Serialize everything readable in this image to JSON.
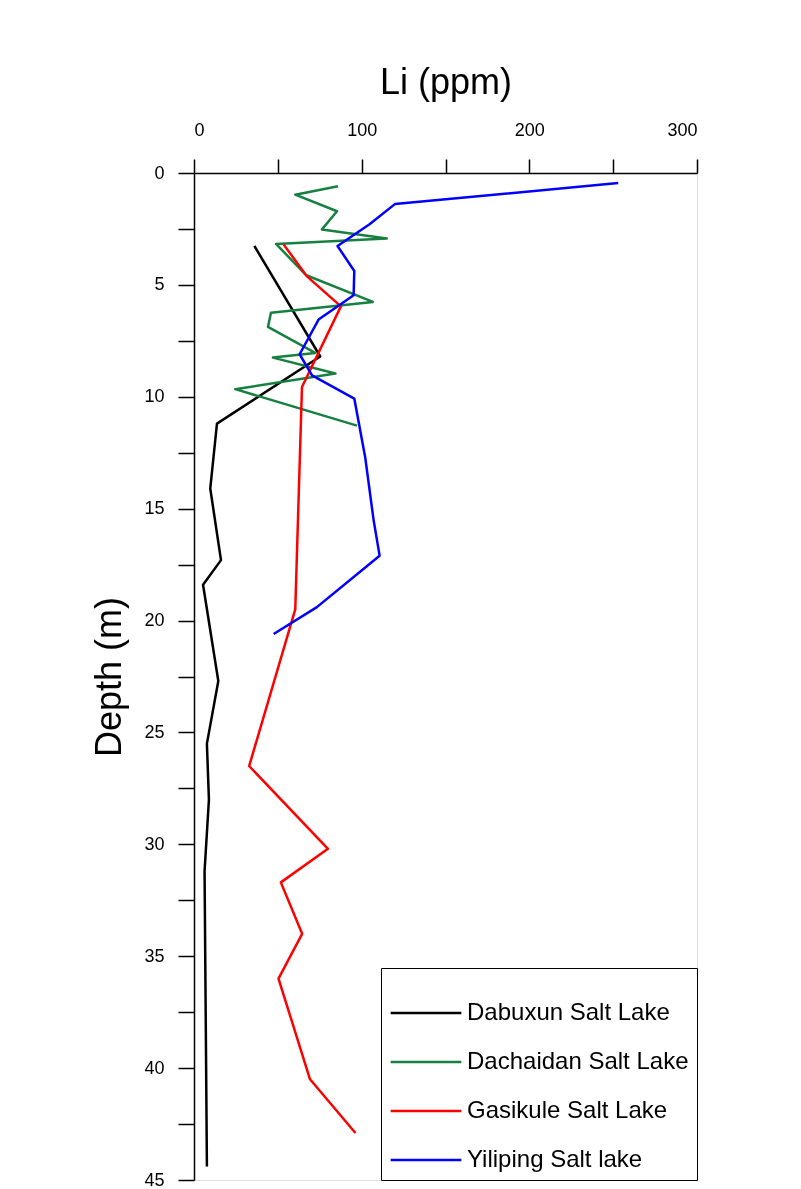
{
  "chart_data": {
    "type": "line",
    "xlabel": "Li (ppm)",
    "ylabel": "Depth (m)",
    "xlim": [
      0,
      300
    ],
    "xticks": [
      0,
      {
        "value": 50,
        "label": null
      },
      100,
      {
        "value": 150,
        "label": null
      },
      200,
      {
        "value": 250,
        "label": null
      },
      300
    ],
    "ylim": [
      45,
      0
    ],
    "yticks": [
      0,
      {
        "value": 2.5,
        "label": null
      },
      5,
      {
        "value": 7.5,
        "label": null
      },
      10,
      {
        "value": 12.5,
        "label": null
      },
      15,
      {
        "value": 17.5,
        "label": null
      },
      20,
      {
        "value": 22.5,
        "label": null
      },
      25,
      {
        "value": 27.5,
        "label": null
      },
      30,
      {
        "value": 32.5,
        "label": null
      },
      35,
      {
        "value": 37.5,
        "label": null
      },
      40,
      {
        "value": 42.5,
        "label": null
      },
      45
    ],
    "grid": false,
    "legend": "bottom right",
    "line_style": "solid",
    "marker": "none",
    "series": [
      {
        "name": "Dabuxun Salt Lake",
        "color": "#000000",
        "x": [
          36,
          75.3,
          13.7,
          9.7,
          16.1,
          5.4,
          14.5,
          7.7,
          8.9,
          6.3,
          7.7
        ],
        "values": [
          3.26,
          8.2,
          11.2,
          14.1,
          17.3,
          18.4,
          22.7,
          25.5,
          28.0,
          31.2,
          44.4
        ]
      },
      {
        "name": "Dachaidan Salt Lake",
        "color": "#178040",
        "x": [
          85.9,
          60.4,
          85.3,
          76.3,
          115,
          48.9,
          67,
          106.7,
          45.9,
          44.1,
          72.3,
          47.1,
          84.4,
          24.6,
          97.2
        ],
        "values": [
          0.59,
          0.97,
          1.71,
          2.52,
          2.93,
          3.17,
          4.57,
          5.76,
          6.24,
          6.88,
          8.04,
          8.25,
          8.96,
          9.66,
          11.29
        ]
      },
      {
        "name": "Gasikule Salt Lake",
        "color": "#ff0000",
        "x": [
          53.4,
          67.4,
          87.6,
          64.4,
          60.4,
          32.9,
          79.9,
          51.8,
          64.5,
          50.4,
          69.2,
          96.3
        ],
        "values": [
          3.19,
          4.62,
          5.96,
          9.56,
          19.5,
          26.5,
          30.2,
          31.7,
          34.0,
          36.0,
          40.5,
          42.9
        ]
      },
      {
        "name": "Yiliping Salt lake",
        "color": "#0000ff",
        "x": [
          253,
          119.8,
          104.7,
          85.6,
          95.6,
          95.2,
          74.3,
          63,
          70.4,
          95.6,
          102.1,
          107.1,
          110.7,
          73.3,
          47.5
        ],
        "values": [
          0.45,
          1.39,
          2.29,
          3.26,
          4.38,
          5.46,
          6.55,
          8.1,
          9.04,
          10.08,
          12.7,
          15.5,
          17.1,
          19.4,
          20.6
        ]
      }
    ]
  }
}
